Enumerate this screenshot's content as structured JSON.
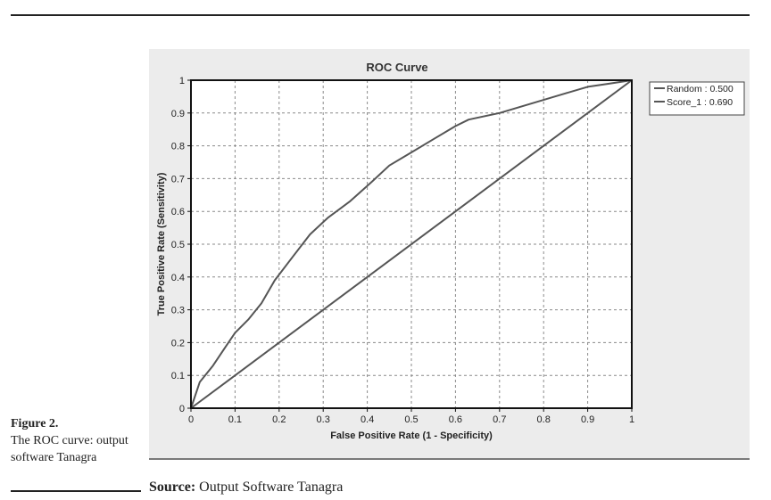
{
  "caption": {
    "figure_label": "Figure 2.",
    "text": "The ROC curve: output software Tanagra"
  },
  "source": {
    "label": "Source:",
    "text": "Output Software Tanagra"
  },
  "colors": {
    "curve": "#555555",
    "grid": "#8a8a8a",
    "frame": "#111111"
  },
  "chart_data": {
    "type": "line",
    "title": "ROC Curve",
    "xlabel": "False Positive Rate (1 - Specificity)",
    "ylabel": "True Positive Rate (Sensitivity)",
    "xlim": [
      0,
      1
    ],
    "ylim": [
      0,
      1
    ],
    "xticks": [
      "0",
      "0.1",
      "0.2",
      "0.3",
      "0.4",
      "0.5",
      "0.6",
      "0.7",
      "0.8",
      "0.9",
      "1"
    ],
    "yticks": [
      "0",
      "0.1",
      "0.2",
      "0.3",
      "0.4",
      "0.5",
      "0.6",
      "0.7",
      "0.8",
      "0.9",
      "1"
    ],
    "grid": true,
    "legend_position": "right",
    "series": [
      {
        "name": "Random : 0.500",
        "x": [
          0,
          1
        ],
        "y": [
          0,
          1
        ]
      },
      {
        "name": "Score_1 : 0.690",
        "x": [
          0,
          0.02,
          0.05,
          0.08,
          0.1,
          0.13,
          0.16,
          0.19,
          0.23,
          0.27,
          0.31,
          0.36,
          0.41,
          0.45,
          0.5,
          0.55,
          0.6,
          0.63,
          0.7,
          0.75,
          0.8,
          0.85,
          0.9,
          0.95,
          1
        ],
        "y": [
          0,
          0.08,
          0.13,
          0.19,
          0.23,
          0.27,
          0.32,
          0.39,
          0.46,
          0.53,
          0.58,
          0.63,
          0.69,
          0.74,
          0.78,
          0.82,
          0.86,
          0.88,
          0.9,
          0.92,
          0.94,
          0.96,
          0.98,
          0.99,
          1
        ]
      }
    ]
  }
}
